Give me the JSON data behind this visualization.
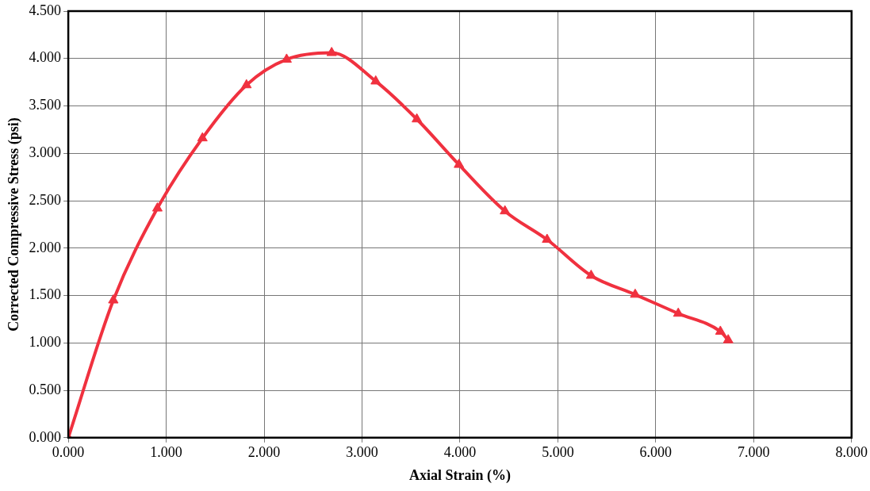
{
  "chart_data": {
    "type": "line",
    "xlabel": "Axial Strain (%)",
    "ylabel": "Corrected Compressive Stress (psi)",
    "x": [
      0,
      0.46,
      0.91,
      1.37,
      1.82,
      2.23,
      2.69,
      3.14,
      3.56,
      3.99,
      4.46,
      4.89,
      5.34,
      5.79,
      6.23,
      6.66,
      6.74
    ],
    "series": [
      {
        "color": "#f0313f",
        "values": [
          0,
          1.45,
          2.42,
          3.16,
          3.72,
          3.99,
          4.06,
          3.76,
          3.36,
          2.88,
          2.39,
          2.09,
          1.71,
          1.51,
          1.31,
          1.12,
          1.03
        ]
      }
    ],
    "xlim": [
      0,
      8
    ],
    "ylim": [
      0,
      4.5
    ],
    "xticks": [
      {
        "value": 0,
        "label": "0.000"
      },
      {
        "value": 1,
        "label": "1.000"
      },
      {
        "value": 2,
        "label": "2.000"
      },
      {
        "value": 3,
        "label": "3.000"
      },
      {
        "value": 4,
        "label": "4.000"
      },
      {
        "value": 5,
        "label": "5.000"
      },
      {
        "value": 6,
        "label": "6.000"
      },
      {
        "value": 7,
        "label": "7.000"
      },
      {
        "value": 8,
        "label": "8.000"
      }
    ],
    "yticks": [
      {
        "value": 0,
        "label": "0.000"
      },
      {
        "value": 0.5,
        "label": "0.500"
      },
      {
        "value": 1,
        "label": "1.000"
      },
      {
        "value": 1.5,
        "label": "1.500"
      },
      {
        "value": 2,
        "label": "2.000"
      },
      {
        "value": 2.5,
        "label": "2.500"
      },
      {
        "value": 3,
        "label": "3.000"
      },
      {
        "value": 3.5,
        "label": "3.500"
      },
      {
        "value": 4,
        "label": "4.000"
      },
      {
        "value": 4.5,
        "label": "4.500"
      }
    ],
    "grid": true,
    "legend": false,
    "marker": "triangle",
    "line_style": "solid"
  }
}
